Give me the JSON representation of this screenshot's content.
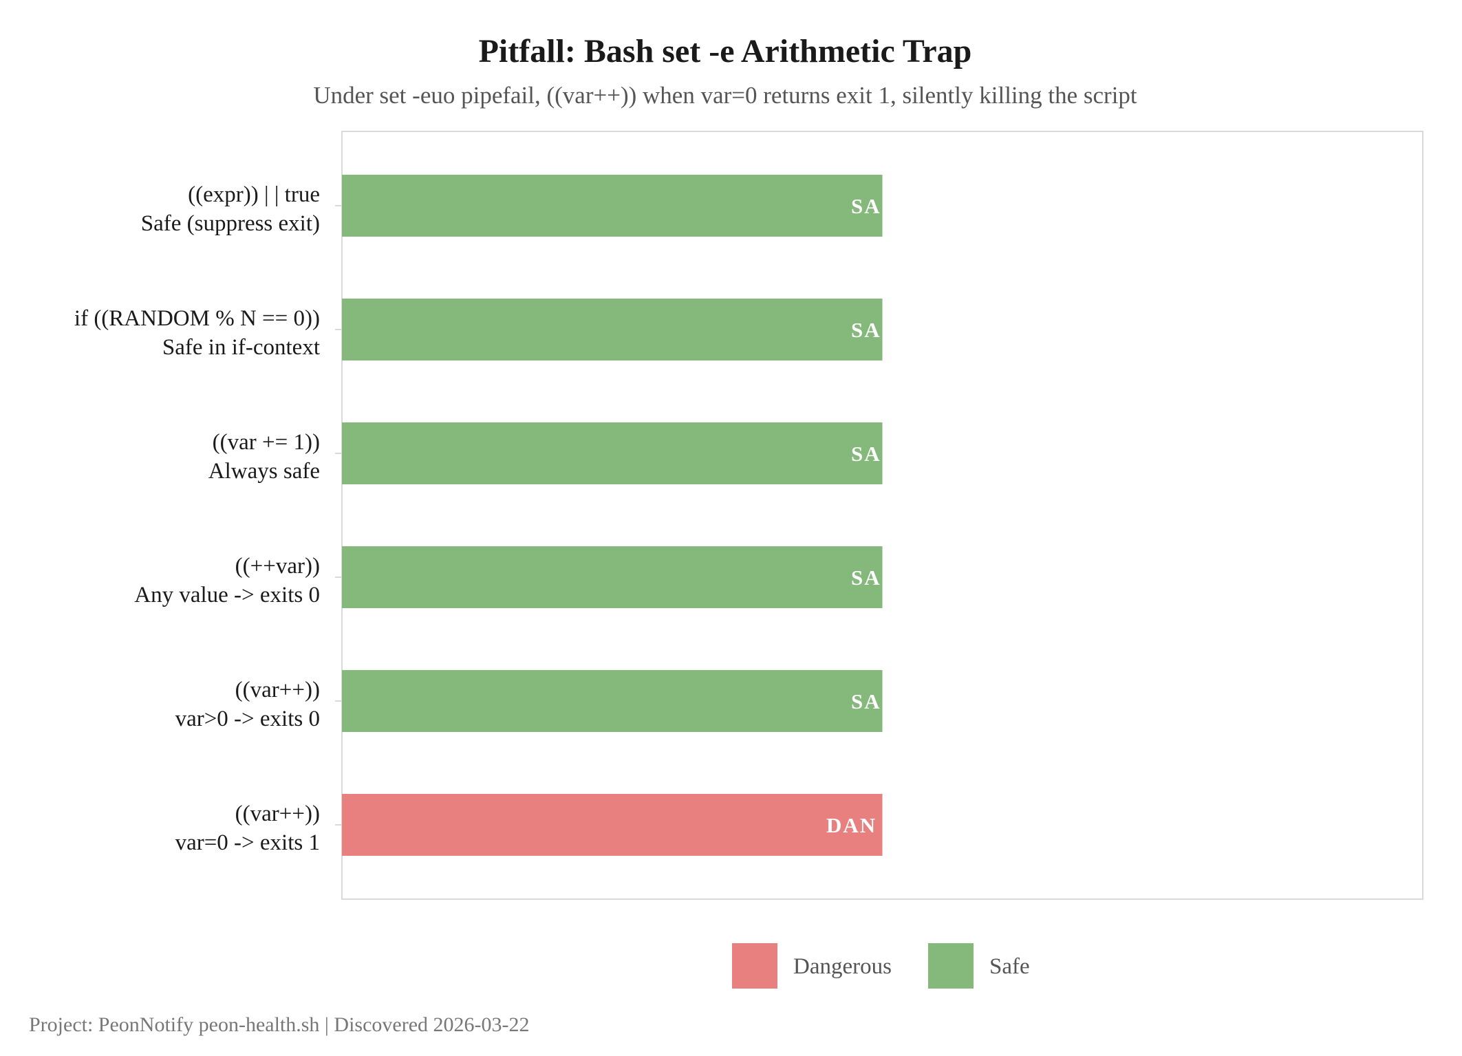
{
  "chart_data": {
    "type": "bar",
    "orientation": "horizontal",
    "title": "Pitfall: Bash set -e Arithmetic Trap",
    "subtitle": "Under set -euo pipefail, ((var++)) when var=0 returns exit 1, silently killing the script",
    "caption": "Project: PeonNotify peon-health.sh | Discovered 2026-03-22",
    "categories": [
      {
        "line1": "((expr)) | | true",
        "line2": "Safe (suppress exit)"
      },
      {
        "line1": "if ((RANDOM % N == 0))",
        "line2": "Safe in if-context"
      },
      {
        "line1": "((var += 1))",
        "line2": "Always safe"
      },
      {
        "line1": "((++var))",
        "line2": "Any value -> exits 0"
      },
      {
        "line1": "((var++))",
        "line2": "var>0 -> exits 0"
      },
      {
        "line1": "((var++))",
        "line2": "var=0 -> exits 1"
      }
    ],
    "values": [
      1,
      1,
      1,
      1,
      1,
      1
    ],
    "groups": [
      "Safe",
      "Safe",
      "Safe",
      "Safe",
      "Safe",
      "Dangerous"
    ],
    "bar_labels": [
      "SA",
      "SA",
      "SA",
      "SA",
      "SA",
      "DAN"
    ],
    "xlim": [
      0,
      2
    ],
    "xaxis_visible": false,
    "grid": false,
    "legend": {
      "placement": "bottom",
      "entries": [
        {
          "name": "Dangerous",
          "color": "#e98080"
        },
        {
          "name": "Safe",
          "color": "#84b97b"
        }
      ]
    },
    "colors": {
      "Safe": "#84b97b",
      "Dangerous": "#e98080",
      "panel_border": "#d9d9d9"
    }
  }
}
